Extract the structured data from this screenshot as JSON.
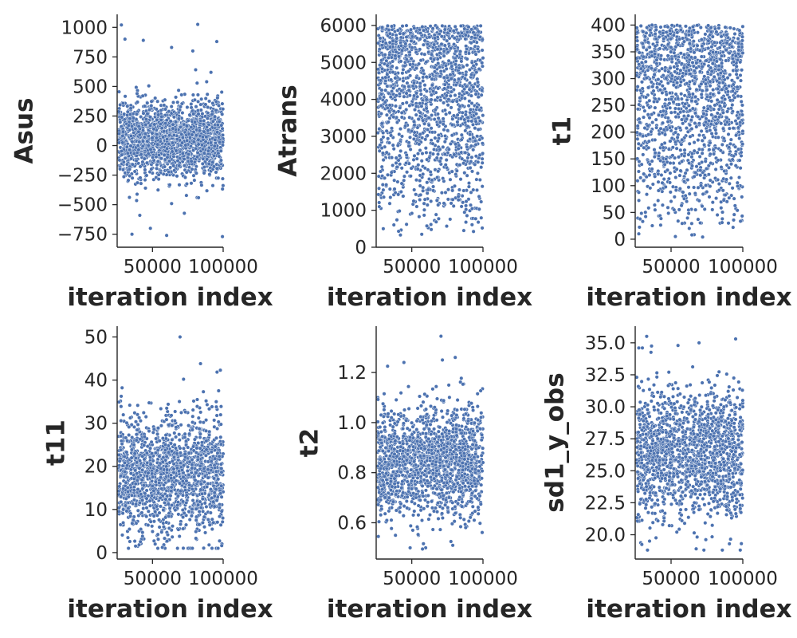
{
  "colors": {
    "point_fill": "#4c72b0",
    "point_edge": "#ffffff",
    "axis": "#262626"
  },
  "chart_data": [
    {
      "type": "scatter",
      "xlabel": "iteration index",
      "ylabel": "Asus",
      "xlim": [
        25000,
        100000
      ],
      "ylim": [
        -860,
        1110
      ],
      "xticks": [
        50000,
        100000
      ],
      "xtick_labels": [
        "50000",
        "100000"
      ],
      "yticks": [
        -750,
        -500,
        -250,
        0,
        250,
        500,
        750,
        1000
      ],
      "ytick_labels": [
        "−750",
        "−500",
        "−250",
        "0",
        "250",
        "500",
        "750",
        "1000"
      ],
      "x_range": [
        26000,
        100000
      ],
      "distribution": {
        "kind": "normal",
        "center": 50,
        "spread": 165,
        "min": -770,
        "max": 1020
      },
      "n_points": 1600,
      "seed": 11,
      "highlights": [
        {
          "x": 28000,
          "y": 1020
        },
        {
          "x": 82000,
          "y": 1025
        },
        {
          "x": 30500,
          "y": 900
        },
        {
          "x": 95500,
          "y": 880
        },
        {
          "x": 43500,
          "y": 890
        },
        {
          "x": 35500,
          "y": -750
        },
        {
          "x": 60000,
          "y": -760
        },
        {
          "x": 99500,
          "y": -770
        },
        {
          "x": 63500,
          "y": 830
        },
        {
          "x": 78500,
          "y": 800
        },
        {
          "x": 41000,
          "y": -590
        },
        {
          "x": 48500,
          "y": -700
        }
      ],
      "grid": false,
      "legend": "none"
    },
    {
      "type": "scatter",
      "xlabel": "iteration index",
      "ylabel": "Atrans",
      "xlim": [
        25000,
        100000
      ],
      "ylim": [
        0,
        6300
      ],
      "xticks": [
        50000,
        100000
      ],
      "xtick_labels": [
        "50000",
        "100000"
      ],
      "yticks": [
        0,
        1000,
        2000,
        3000,
        4000,
        5000,
        6000
      ],
      "ytick_labels": [
        "0",
        "1000",
        "2000",
        "3000",
        "4000",
        "5000",
        "6000"
      ],
      "x_range": [
        26000,
        100000
      ],
      "distribution": {
        "kind": "skew_high",
        "min": 300,
        "max": 6000,
        "power": 0.55
      },
      "n_points": 1600,
      "seed": 23,
      "highlights": [
        {
          "x": 42000,
          "y": 330
        },
        {
          "x": 57000,
          "y": 350
        },
        {
          "x": 30000,
          "y": 500
        },
        {
          "x": 99500,
          "y": 520
        },
        {
          "x": 86500,
          "y": 450
        }
      ],
      "grid": false,
      "legend": "none"
    },
    {
      "type": "scatter",
      "xlabel": "iteration index",
      "ylabel": "t1",
      "xlim": [
        25000,
        100000
      ],
      "ylim": [
        -15,
        420
      ],
      "xticks": [
        50000,
        100000
      ],
      "xtick_labels": [
        "50000",
        "100000"
      ],
      "yticks": [
        0,
        50,
        100,
        150,
        200,
        250,
        300,
        350,
        400
      ],
      "ytick_labels": [
        "0",
        "50",
        "100",
        "150",
        "200",
        "250",
        "300",
        "350",
        "400"
      ],
      "x_range": [
        26000,
        100000
      ],
      "distribution": {
        "kind": "skew_high",
        "min": 2,
        "max": 400,
        "power": 0.55
      },
      "n_points": 1600,
      "seed": 37,
      "highlights": [
        {
          "x": 27500,
          "y": 10
        },
        {
          "x": 53000,
          "y": 5
        },
        {
          "x": 72000,
          "y": 4
        },
        {
          "x": 64500,
          "y": 8
        },
        {
          "x": 90000,
          "y": 30
        }
      ],
      "grid": false,
      "legend": "none"
    },
    {
      "type": "scatter",
      "xlabel": "iteration index",
      "ylabel": "t11",
      "xlim": [
        25000,
        100000
      ],
      "ylim": [
        -1.5,
        52.5
      ],
      "xticks": [
        50000,
        100000
      ],
      "xtick_labels": [
        "50000",
        "100000"
      ],
      "yticks": [
        0,
        10,
        20,
        30,
        40,
        50
      ],
      "ytick_labels": [
        "0",
        "10",
        "20",
        "30",
        "40",
        "50"
      ],
      "x_range": [
        26000,
        100000
      ],
      "distribution": {
        "kind": "normal",
        "center": 18,
        "spread": 7,
        "min": 1,
        "max": 50
      },
      "n_points": 1600,
      "seed": 53,
      "highlights": [
        {
          "x": 69500,
          "y": 50
        },
        {
          "x": 84000,
          "y": 43.8
        },
        {
          "x": 98000,
          "y": 42.3
        },
        {
          "x": 28500,
          "y": 38.2
        },
        {
          "x": 72000,
          "y": 40.2
        },
        {
          "x": 86000,
          "y": 37.3
        },
        {
          "x": 38000,
          "y": 1.5
        },
        {
          "x": 57000,
          "y": 1.2
        },
        {
          "x": 99000,
          "y": 1.6
        }
      ],
      "grid": false,
      "legend": "none"
    },
    {
      "type": "scatter",
      "xlabel": "iteration index",
      "ylabel": "t2",
      "xlim": [
        25000,
        100000
      ],
      "ylim": [
        0.455,
        1.385
      ],
      "xticks": [
        50000,
        100000
      ],
      "xtick_labels": [
        "50000",
        "100000"
      ],
      "yticks": [
        0.6,
        0.8,
        1.0,
        1.2
      ],
      "ytick_labels": [
        "0.6",
        "0.8",
        "1.0",
        "1.2"
      ],
      "x_range": [
        26000,
        100000
      ],
      "distribution": {
        "kind": "normal",
        "center": 0.84,
        "spread": 0.11,
        "min": 0.5,
        "max": 1.35
      },
      "n_points": 1600,
      "seed": 71,
      "highlights": [
        {
          "x": 70500,
          "y": 1.345
        },
        {
          "x": 57500,
          "y": 0.495
        },
        {
          "x": 71500,
          "y": 1.25
        },
        {
          "x": 33000,
          "y": 1.225
        },
        {
          "x": 44500,
          "y": 1.24
        },
        {
          "x": 80500,
          "y": 1.26
        },
        {
          "x": 26500,
          "y": 0.545
        },
        {
          "x": 77500,
          "y": 0.525
        }
      ],
      "grid": false,
      "legend": "none"
    },
    {
      "type": "scatter",
      "xlabel": "iteration index",
      "ylabel": "sd1_y_obs",
      "xlim": [
        25000,
        100000
      ],
      "ylim": [
        18.1,
        36.3
      ],
      "xticks": [
        50000,
        100000
      ],
      "xtick_labels": [
        "50000",
        "100000"
      ],
      "yticks": [
        20.0,
        22.5,
        25.0,
        27.5,
        30.0,
        32.5,
        35.0
      ],
      "ytick_labels": [
        "20.0",
        "22.5",
        "25.0",
        "27.5",
        "30.0",
        "32.5",
        "35.0"
      ],
      "x_range": [
        26000,
        100000
      ],
      "distribution": {
        "kind": "normal",
        "center": 26.3,
        "spread": 2.5,
        "min": 18.8,
        "max": 35.6
      },
      "n_points": 1600,
      "seed": 89,
      "highlights": [
        {
          "x": 33000,
          "y": 35.5
        },
        {
          "x": 95000,
          "y": 35.3
        },
        {
          "x": 69500,
          "y": 35.0
        },
        {
          "x": 27500,
          "y": 34.6
        },
        {
          "x": 30000,
          "y": 34.6
        },
        {
          "x": 67500,
          "y": 18.9
        },
        {
          "x": 35000,
          "y": 19.5
        },
        {
          "x": 99000,
          "y": 19.3
        }
      ],
      "grid": false,
      "legend": "none"
    }
  ]
}
